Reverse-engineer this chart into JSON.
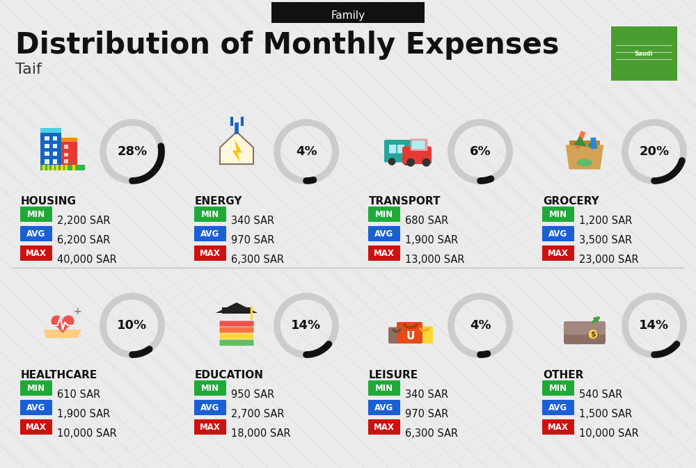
{
  "title": "Distribution of Monthly Expenses",
  "subtitle": "Family",
  "location": "Taif",
  "bg_color": "#ebebeb",
  "header_bg": "#111111",
  "header_text_color": "#ffffff",
  "title_color": "#111111",
  "location_color": "#333333",
  "min_color": "#1faa38",
  "avg_color": "#1a5fd4",
  "max_color": "#cc1111",
  "arc_bg_color": "#cccccc",
  "arc_fg_color": "#111111",
  "stripe_color": "#dedede",
  "categories": [
    {
      "name": "HOUSING",
      "percent": 28,
      "min": "2,200 SAR",
      "avg": "6,200 SAR",
      "max": "40,000 SAR",
      "icon": "housing",
      "row": 0,
      "col": 0
    },
    {
      "name": "ENERGY",
      "percent": 4,
      "min": "340 SAR",
      "avg": "970 SAR",
      "max": "6,300 SAR",
      "icon": "energy",
      "row": 0,
      "col": 1
    },
    {
      "name": "TRANSPORT",
      "percent": 6,
      "min": "680 SAR",
      "avg": "1,900 SAR",
      "max": "13,000 SAR",
      "icon": "transport",
      "row": 0,
      "col": 2
    },
    {
      "name": "GROCERY",
      "percent": 20,
      "min": "1,200 SAR",
      "avg": "3,500 SAR",
      "max": "23,000 SAR",
      "icon": "grocery",
      "row": 0,
      "col": 3
    },
    {
      "name": "HEALTHCARE",
      "percent": 10,
      "min": "610 SAR",
      "avg": "1,900 SAR",
      "max": "10,000 SAR",
      "icon": "healthcare",
      "row": 1,
      "col": 0
    },
    {
      "name": "EDUCATION",
      "percent": 14,
      "min": "950 SAR",
      "avg": "2,700 SAR",
      "max": "18,000 SAR",
      "icon": "education",
      "row": 1,
      "col": 1
    },
    {
      "name": "LEISURE",
      "percent": 4,
      "min": "340 SAR",
      "avg": "970 SAR",
      "max": "6,300 SAR",
      "icon": "leisure",
      "row": 1,
      "col": 2
    },
    {
      "name": "OTHER",
      "percent": 14,
      "min": "540 SAR",
      "avg": "1,500 SAR",
      "max": "10,000 SAR",
      "icon": "other",
      "row": 1,
      "col": 3
    }
  ]
}
